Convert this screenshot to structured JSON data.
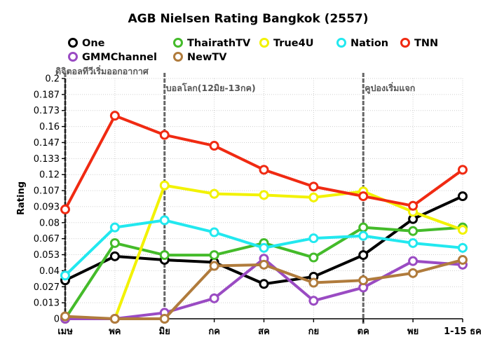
{
  "chart_data": {
    "type": "line",
    "title": "AGB Nielsen Rating Bangkok (2557)",
    "xlabel": "",
    "ylabel": "Rating",
    "categories": [
      "เมษ",
      "พค",
      "มิย",
      "กค",
      "สค",
      "กย",
      "ตค",
      "พย",
      "1-15 ธค"
    ],
    "ylim": [
      0,
      0.2
    ],
    "yticks": [
      "0",
      "0.013",
      "0.027",
      "0.04",
      "0.053",
      "0.067",
      "0.08",
      "0.093",
      "0.107",
      "0.12",
      "0.133",
      "0.147",
      "0.16",
      "0.173",
      "0.187",
      "0.2"
    ],
    "grid": true,
    "legend_position": "top",
    "series": [
      {
        "name": "One",
        "color": "#000000",
        "values": [
          0.032,
          0.052,
          0.049,
          0.047,
          0.029,
          0.035,
          0.053,
          0.083,
          0.102
        ]
      },
      {
        "name": "ThairathTV",
        "color": "#44bb2a",
        "values": [
          0.0,
          0.063,
          0.053,
          0.053,
          0.063,
          0.051,
          0.076,
          0.073,
          0.076
        ]
      },
      {
        "name": "True4U",
        "color": "#f2f200",
        "values": [
          0.0,
          0.0,
          0.111,
          0.104,
          0.103,
          0.101,
          0.106,
          0.089,
          0.074
        ]
      },
      {
        "name": "Nation",
        "color": "#22e8ef",
        "values": [
          0.036,
          0.076,
          0.082,
          0.072,
          0.059,
          0.067,
          0.069,
          0.063,
          0.059
        ]
      },
      {
        "name": "TNN",
        "color": "#f02a12",
        "values": [
          0.091,
          0.169,
          0.153,
          0.144,
          0.124,
          0.11,
          0.102,
          0.094,
          0.124
        ]
      },
      {
        "name": "GMMChannel",
        "color": "#9a4bc3",
        "values": [
          0.0,
          0.0,
          0.005,
          0.017,
          0.05,
          0.015,
          0.026,
          0.048,
          0.045
        ]
      },
      {
        "name": "NewTV",
        "color": "#b07b3c",
        "values": [
          0.002,
          0.0,
          0.0,
          0.044,
          0.045,
          0.03,
          0.032,
          0.038,
          0.049
        ]
      }
    ],
    "annotations": [
      {
        "text": "ดิจิตอลทีวีเริ่มออกอากาศ",
        "at_category": 0
      },
      {
        "text": "บอลโลก(12มิย-13กค)",
        "at_category": 2
      },
      {
        "text": "คูปองเริ่มแจก",
        "at_category": 6
      }
    ]
  }
}
